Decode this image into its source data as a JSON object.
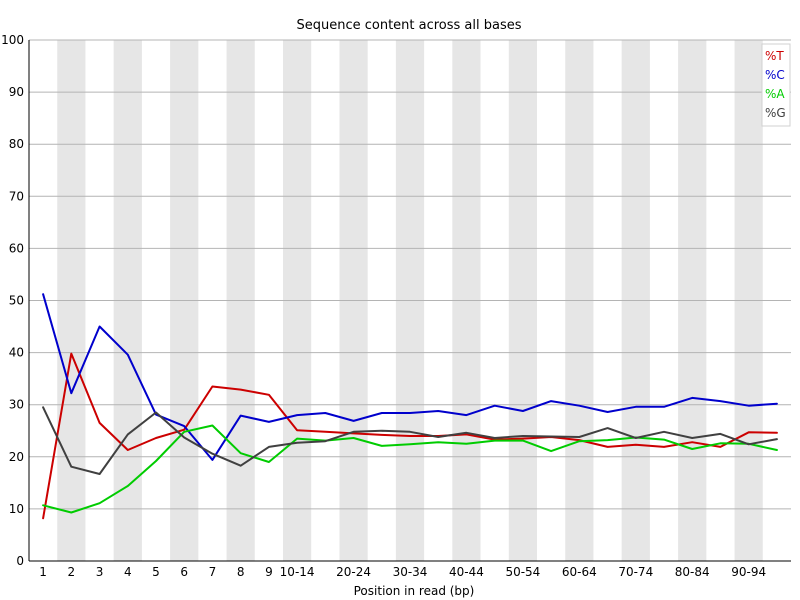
{
  "chart_data": {
    "type": "line",
    "title": "Sequence content across all bases",
    "xlabel": "Position in read (bp)",
    "ylabel": "",
    "ylim": [
      0,
      100
    ],
    "yticks": [
      0,
      10,
      20,
      30,
      40,
      50,
      60,
      70,
      80,
      90,
      100
    ],
    "categories": [
      "1",
      "2",
      "3",
      "4",
      "5",
      "6",
      "7",
      "8",
      "9",
      "10-14",
      "15-19",
      "20-24",
      "25-29",
      "30-34",
      "35-39",
      "40-44",
      "45-49",
      "50-54",
      "55-59",
      "60-64",
      "65-69",
      "70-74",
      "75-79",
      "80-84",
      "85-89",
      "90-94",
      "95-99"
    ],
    "tick_labels": [
      "1",
      "2",
      "3",
      "4",
      "5",
      "6",
      "7",
      "8",
      "9",
      "10-14",
      "",
      "20-24",
      "",
      "30-34",
      "",
      "40-44",
      "",
      "50-54",
      "",
      "60-64",
      "",
      "70-74",
      "",
      "80-84",
      "",
      "90-94",
      ""
    ],
    "grid": true,
    "banded_background": true,
    "legend_position": "top-right",
    "series": [
      {
        "name": "%T",
        "color": "#cc0000",
        "values": [
          8.2,
          39.8,
          26.5,
          21.3,
          23.6,
          25.2,
          33.5,
          32.9,
          31.9,
          25.1,
          24.8,
          24.5,
          24.2,
          24.0,
          24.0,
          24.3,
          23.3,
          23.5,
          23.8,
          23.2,
          21.9,
          22.3,
          21.9,
          22.8,
          21.9,
          24.7,
          24.6
        ]
      },
      {
        "name": "%C",
        "color": "#0000cc",
        "values": [
          51.2,
          32.2,
          45.0,
          39.6,
          28.1,
          25.9,
          19.4,
          27.9,
          26.7,
          28.0,
          28.4,
          26.9,
          28.4,
          28.4,
          28.8,
          28.0,
          29.8,
          28.8,
          30.7,
          29.8,
          28.6,
          29.6,
          29.6,
          31.3,
          30.7,
          29.8,
          30.2
        ]
      },
      {
        "name": "%A",
        "color": "#00cc00",
        "values": [
          10.7,
          9.3,
          11.1,
          14.4,
          19.2,
          24.8,
          26.0,
          20.7,
          19.0,
          23.5,
          23.1,
          23.6,
          22.1,
          22.4,
          22.8,
          22.5,
          23.1,
          23.1,
          21.1,
          23.0,
          23.2,
          23.7,
          23.3,
          21.5,
          22.6,
          22.5,
          21.3
        ]
      },
      {
        "name": "%G",
        "color": "#404040",
        "values": [
          29.5,
          18.1,
          16.7,
          24.3,
          28.5,
          23.7,
          20.6,
          18.3,
          21.9,
          22.7,
          23.0,
          24.8,
          25.0,
          24.8,
          23.8,
          24.6,
          23.6,
          24.0,
          23.9,
          23.8,
          25.5,
          23.6,
          24.8,
          23.6,
          24.4,
          22.4,
          23.4
        ]
      }
    ]
  }
}
